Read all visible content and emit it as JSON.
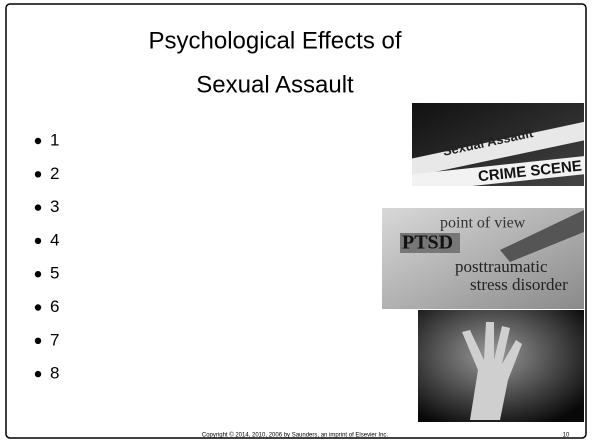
{
  "slide": {
    "title_lines": [
      "Psychological Effects of",
      "Sexual Assault"
    ],
    "bullets": [
      "1",
      "2",
      "3",
      "4",
      "5",
      "6",
      "7",
      "8"
    ],
    "images": [
      {
        "texts": [
          "Sexual Assault",
          "CRIME SCENE"
        ]
      },
      {
        "texts": [
          "point of view",
          "PTSD",
          "posttraumatic",
          "stress disorder"
        ]
      },
      {
        "texts": []
      }
    ],
    "footer": {
      "copyright": "Copyright © 2014, 2010, 2006 by Saunders, an imprint of Elsevier Inc.",
      "page": "10"
    }
  }
}
